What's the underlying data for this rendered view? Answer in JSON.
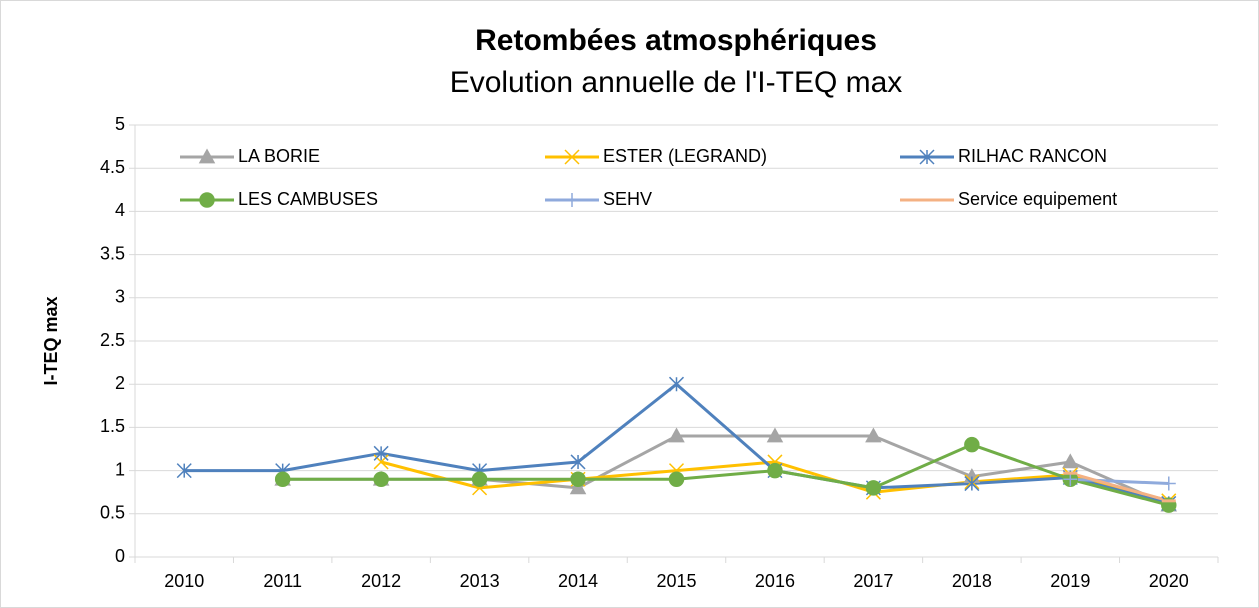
{
  "chart_data": {
    "type": "line",
    "title": "Retombées atmosphériques",
    "subtitle": "Evolution annuelle de l'I-TEQ max",
    "y_label": "I-TEQ max",
    "categories": [
      "2010",
      "2011",
      "2012",
      "2013",
      "2014",
      "2015",
      "2016",
      "2017",
      "2018",
      "2019",
      "2020"
    ],
    "series": [
      {
        "name": "LA BORIE",
        "color": "#a5a5a5",
        "marker": "triangle",
        "values": [
          null,
          0.9,
          0.9,
          0.9,
          0.8,
          1.4,
          1.4,
          1.4,
          0.93,
          1.1,
          0.6
        ]
      },
      {
        "name": "ESTER (LEGRAND)",
        "color": "#ffc000",
        "marker": "x",
        "values": [
          null,
          null,
          1.1,
          0.8,
          0.9,
          1.0,
          1.1,
          0.75,
          0.87,
          0.95,
          0.65
        ]
      },
      {
        "name": "RILHAC RANCON",
        "color": "#4f81bd",
        "marker": "star",
        "values": [
          1.0,
          1.0,
          1.2,
          1.0,
          1.1,
          2.0,
          1.0,
          0.8,
          0.85,
          0.92,
          0.62
        ]
      },
      {
        "name": "LES CAMBUSES",
        "color": "#70ad47",
        "marker": "circle",
        "values": [
          null,
          0.9,
          0.9,
          0.9,
          0.9,
          0.9,
          1.0,
          0.8,
          1.3,
          0.9,
          0.6
        ]
      },
      {
        "name": "SEHV",
        "color": "#8faadc",
        "marker": "plus",
        "values": [
          null,
          null,
          null,
          null,
          null,
          null,
          null,
          null,
          null,
          0.9,
          0.85
        ]
      },
      {
        "name": "Service equipement",
        "color": "#f4b183",
        "marker": "dash",
        "values": [
          null,
          null,
          null,
          null,
          null,
          null,
          null,
          null,
          null,
          0.97,
          0.65
        ]
      }
    ],
    "ylim": [
      0,
      5
    ],
    "yticks": [
      0,
      0.5,
      1,
      1.5,
      2,
      2.5,
      3,
      3.5,
      4,
      4.5,
      5
    ],
    "grid": true,
    "legend": "top"
  }
}
